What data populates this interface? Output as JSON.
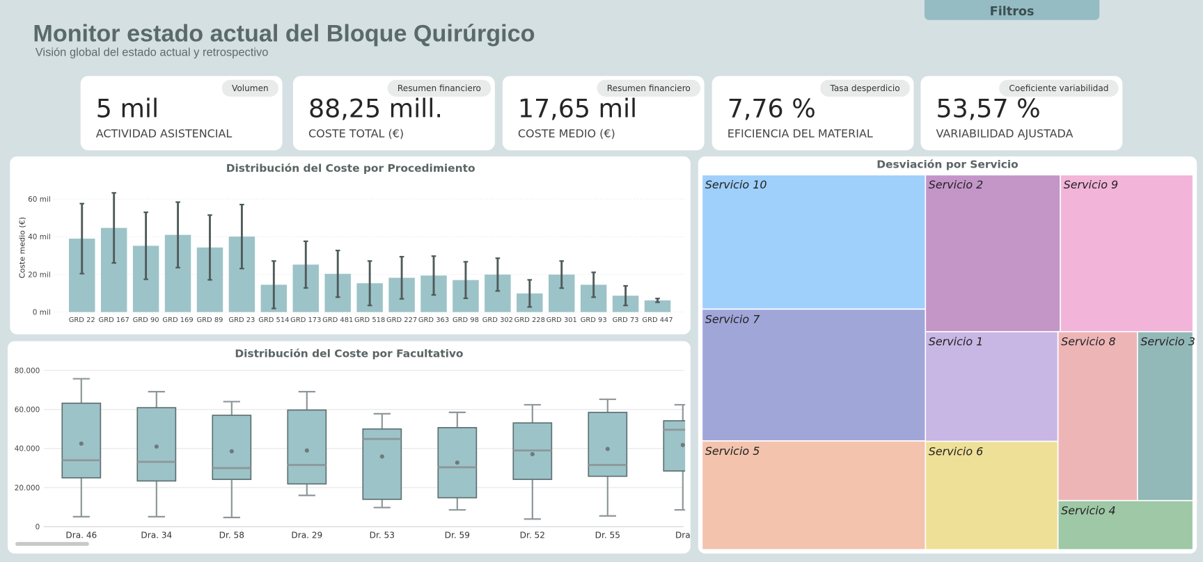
{
  "header": {
    "title": "Monitor estado actual del Bloque Quirúrgico",
    "subtitle": "Visión global del estado actual y retrospectivo",
    "filters_button": "Filtros"
  },
  "kpis": [
    {
      "tag": "Volumen",
      "value": "5 mil",
      "label": "ACTIVIDAD ASISTENCIAL"
    },
    {
      "tag": "Resumen financiero",
      "value": "88,25 mill.",
      "label": "COSTE TOTAL (€)"
    },
    {
      "tag": "Resumen financiero",
      "value": "17,65 mil",
      "label": "COSTE MEDIO (€)"
    },
    {
      "tag": "Tasa desperdicio",
      "value": "7,76 %",
      "label": "EFICIENCIA DEL MATERIAL"
    },
    {
      "tag": "Coeficiente variabilidad",
      "value": "53,57 %",
      "label": "VARIABILIDAD AJUSTADA"
    }
  ],
  "chart_data": [
    {
      "type": "bar",
      "title": "Distribución del Coste por Procedimiento",
      "y_label": "Coste medio (€)",
      "categories": [
        "GRD 22",
        "GRD 167",
        "GRD 90",
        "GRD 169",
        "GRD 89",
        "GRD 23",
        "GRD 514",
        "GRD 173",
        "GRD 481",
        "GRD 518",
        "GRD 227",
        "GRD 363",
        "GRD 98",
        "GRD 302",
        "GRD 228",
        "GRD 301",
        "GRD 93",
        "GRD 73",
        "GRD 447"
      ],
      "values": [
        39000,
        44700,
        35200,
        41000,
        34300,
        40100,
        14500,
        25200,
        20300,
        15300,
        18200,
        19400,
        17000,
        19900,
        9900,
        19900,
        14500,
        8700,
        6200
      ],
      "errors": [
        18600,
        18600,
        17800,
        17400,
        17200,
        17000,
        12600,
        12400,
        12400,
        11800,
        11200,
        10300,
        9700,
        8700,
        7200,
        7200,
        6600,
        5200,
        1000
      ],
      "color": "#9cc3c8",
      "error_color": "#4f5a5a",
      "ylim": [
        0,
        68000
      ],
      "yticks": [
        {
          "value": 0,
          "label": "0 mil"
        },
        {
          "value": 20000,
          "label": "20 mil"
        },
        {
          "value": 40000,
          "label": "40 mil"
        },
        {
          "value": 60000,
          "label": "60 mil"
        }
      ],
      "grid": true
    },
    {
      "type": "box",
      "title": "Distribución del Coste por Facultativo",
      "categories": [
        "Dra. 46",
        "Dra. 34",
        "Dr. 58",
        "Dra. 29",
        "Dr. 53",
        "Dr. 59",
        "Dr. 52",
        "Dr. 55",
        "Dra"
      ],
      "min": [
        5100,
        5100,
        4700,
        16000,
        9800,
        8600,
        3900,
        5500,
        8600
      ],
      "q1": [
        25000,
        23400,
        24200,
        21900,
        14000,
        14800,
        24200,
        25800,
        28500
      ],
      "median": [
        34000,
        33200,
        30000,
        31600,
        44900,
        30400,
        39000,
        31600,
        49600
      ],
      "q3": [
        63200,
        60900,
        57000,
        59700,
        50000,
        50700,
        53100,
        58500,
        54200
      ],
      "max": [
        75700,
        69100,
        64000,
        69100,
        57800,
        58500,
        62400,
        65200,
        62400
      ],
      "mean": [
        42500,
        41000,
        38600,
        39000,
        35900,
        32800,
        37100,
        39800,
        41800
      ],
      "color": "#9cc3c8",
      "ylim": [
        0,
        82000
      ],
      "yticks": [
        0,
        {
          "value": 20000,
          "label": "20.000"
        },
        {
          "value": 40000,
          "label": "40.000"
        },
        {
          "value": 60000,
          "label": "60.000"
        },
        {
          "value": 80000,
          "label": "80.000"
        }
      ],
      "grid": true
    },
    {
      "type": "treemap",
      "title": "Desviación por Servicio",
      "categories": [
        "Servicio 10",
        "Servicio 7",
        "Servicio 5",
        "Servicio 2",
        "Servicio 9",
        "Servicio 1",
        "Servicio 6",
        "Servicio 8",
        "Servicio 3",
        "Servicio 4"
      ],
      "values": [
        16.3,
        16.0,
        13.2,
        11.5,
        11.3,
        7.9,
        7.8,
        7.3,
        5.1,
        3.6
      ],
      "colors": [
        "#9fcffb",
        "#a0a6d8",
        "#f3c3ad",
        "#c496c8",
        "#f2b4d9",
        "#c8b6e4",
        "#efe098",
        "#eeb5b7",
        "#93b8b8",
        "#9ec8a6"
      ]
    }
  ]
}
